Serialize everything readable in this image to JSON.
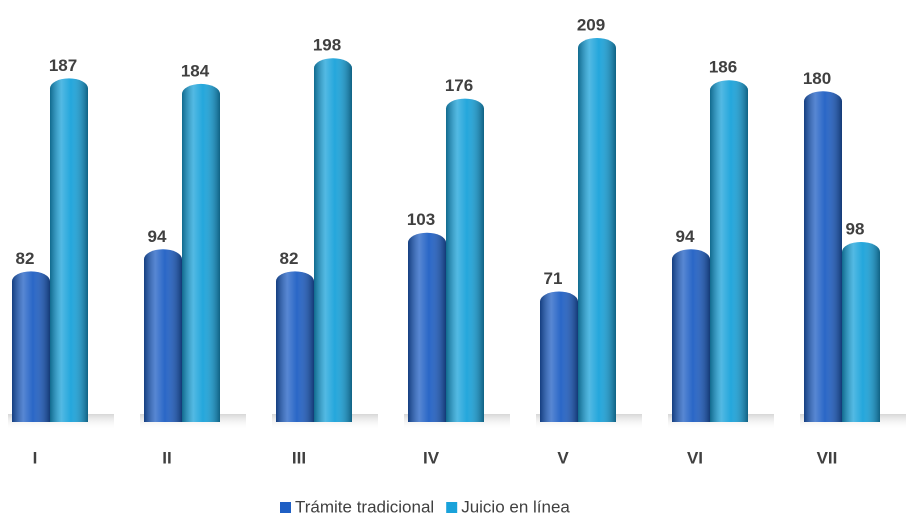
{
  "chart_data": {
    "type": "bar",
    "categories": [
      "I",
      "II",
      "III",
      "IV",
      "V",
      "VI",
      "VII"
    ],
    "series": [
      {
        "name": "Trámite tradicional",
        "color": "#1f5fc4",
        "values": [
          82,
          94,
          82,
          103,
          71,
          94,
          180
        ]
      },
      {
        "name": "Juicio en línea",
        "color": "#19a2da",
        "values": [
          187,
          184,
          198,
          176,
          209,
          186,
          98
        ]
      }
    ],
    "legend": "bottom"
  }
}
